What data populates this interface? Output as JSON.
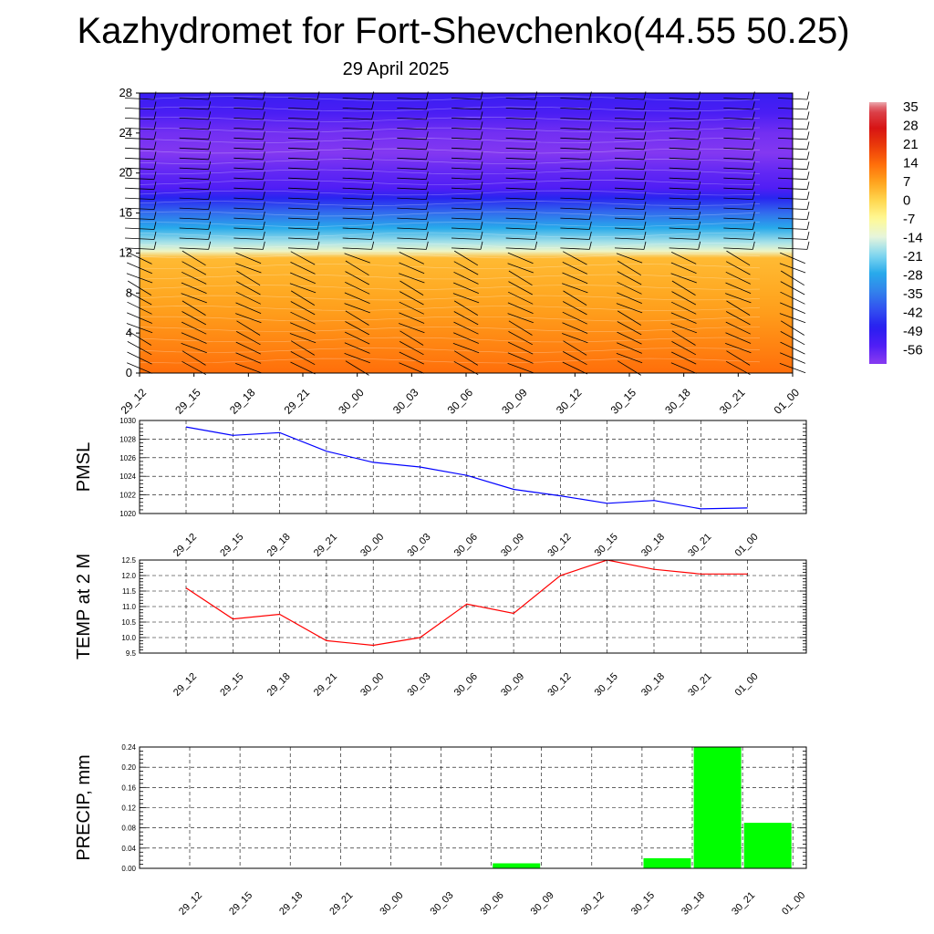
{
  "header": {
    "title": "Kazhydromet for Fort-Shevchenko(44.55 50.25)",
    "subtitle": "29 April 2025"
  },
  "chart_data": [
    {
      "type": "heatmap",
      "title": "",
      "xlabel": "",
      "ylabel": "",
      "x_tick_labels": [
        "29_12",
        "29_15",
        "29_18",
        "29_21",
        "30_00",
        "30_03",
        "30_06",
        "30_09",
        "30_12",
        "30_15",
        "30_18",
        "30_21",
        "01_00"
      ],
      "y_ticks": [
        0,
        4,
        8,
        12,
        16,
        20,
        24,
        28
      ],
      "ylim": [
        0,
        28
      ],
      "profile": {
        "level": [
          0,
          2,
          4,
          6,
          8,
          10,
          11.5,
          12.2,
          13,
          14.5,
          16,
          17.5,
          18.5,
          20,
          22,
          24,
          26,
          28
        ],
        "temp": [
          14,
          12,
          10,
          8,
          6.5,
          5,
          4,
          -12,
          -18,
          -28,
          -38,
          -48,
          -56,
          -58,
          -62,
          -60,
          -55,
          -52
        ]
      },
      "colorbar": {
        "labels": [
          "35",
          "28",
          "21",
          "14",
          "7",
          "0",
          "-7",
          "-14",
          "-21",
          "-28",
          "-35",
          "-42",
          "-49",
          "-56"
        ],
        "range": [
          -63,
          38
        ]
      },
      "wind_barbs": true
    },
    {
      "type": "line",
      "ylabel": "PMSL",
      "categories": [
        "29_12",
        "29_15",
        "29_18",
        "29_21",
        "30_00",
        "30_03",
        "30_06",
        "30_09",
        "30_12",
        "30_15",
        "30_18",
        "30_21",
        "01_00"
      ],
      "values": [
        1029.3,
        1028.4,
        1028.7,
        1026.7,
        1025.5,
        1025.0,
        1024.1,
        1022.6,
        1021.9,
        1021.1,
        1021.4,
        1020.5,
        1020.6
      ],
      "ylim": [
        1020,
        1030
      ],
      "y_ticks": [
        1020,
        1022,
        1024,
        1026,
        1028,
        1030
      ],
      "y_tick_labels": [
        "1020",
        "1022",
        "1024",
        "1026",
        "1028",
        "1030"
      ],
      "color": "#0000ff",
      "grid": true
    },
    {
      "type": "line",
      "ylabel": "TEMP at 2 M",
      "categories": [
        "29_12",
        "29_15",
        "29_18",
        "29_21",
        "30_00",
        "30_03",
        "30_06",
        "30_09",
        "30_12",
        "30_15",
        "30_18",
        "30_21",
        "01_00"
      ],
      "values": [
        11.6,
        10.6,
        10.75,
        9.9,
        9.75,
        10.0,
        11.08,
        10.78,
        12.0,
        12.5,
        12.2,
        12.05,
        12.05
      ],
      "ylim": [
        9.5,
        12.5
      ],
      "y_ticks": [
        9.5,
        10.0,
        10.5,
        11.0,
        11.5,
        12.0,
        12.5
      ],
      "y_tick_labels": [
        "9.5",
        "10.0",
        "10.5",
        "11.0",
        "11.5",
        "12.0",
        "12.5"
      ],
      "color": "#ff0000",
      "grid": true
    },
    {
      "type": "bar",
      "ylabel": "PRECIP, mm",
      "categories": [
        "29_12",
        "29_15",
        "29_18",
        "29_21",
        "30_00",
        "30_03",
        "30_06",
        "30_09",
        "30_12",
        "30_15",
        "30_18",
        "30_21",
        "01_00"
      ],
      "values": [
        0,
        0,
        0,
        0,
        0,
        0,
        0,
        0.01,
        0,
        0,
        0.02,
        0.24,
        0.09
      ],
      "ylim": [
        0,
        0.24
      ],
      "y_ticks": [
        0,
        0.04,
        0.08,
        0.12,
        0.16,
        0.2,
        0.24
      ],
      "y_tick_labels": [
        "0.00",
        "0.04",
        "0.08",
        "0.12",
        "0.16",
        "0.20",
        "0.24"
      ],
      "color": "#00ff00",
      "grid": true
    }
  ]
}
